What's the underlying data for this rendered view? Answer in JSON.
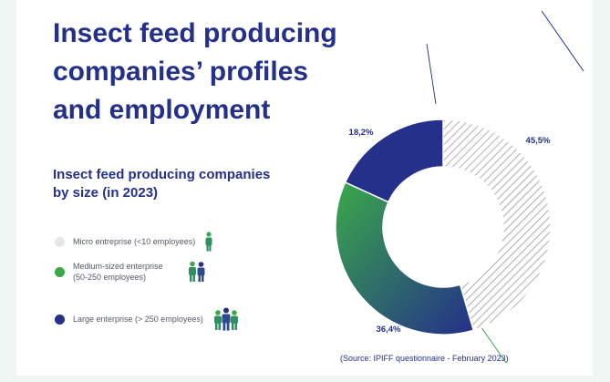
{
  "title_lines": [
    "Insect feed producing",
    "companies’ profiles",
    "and employment"
  ],
  "subtitle_lines": [
    "Insect feed producing companies",
    "by size (in 2023)"
  ],
  "legend": [
    {
      "label_lines": [
        "Micro entreprise (<10 employees)"
      ],
      "color": "#e6e6e6",
      "people_icons": 1
    },
    {
      "label_lines": [
        "Medium-sized enterprise",
        "(50-250 employees)"
      ],
      "color": "#3aa84a",
      "people_icons": 2
    },
    {
      "label_lines": [
        "Large enterprise (> 250 employees)"
      ],
      "color": "#24308a",
      "people_icons": 3
    }
  ],
  "chart_data": {
    "type": "pie",
    "variant": "donut",
    "categories": [
      "Micro entreprise (<10 employees)",
      "Medium-sized enterprise (50-250 employees)",
      "Large enterprise (> 250 employees)"
    ],
    "values": [
      45.5,
      36.4,
      18.2
    ],
    "labels": [
      "45,5%",
      "36,4%",
      "18,2%"
    ],
    "colors": [
      "#e6e6e6",
      "#3aa84a",
      "#24308a"
    ],
    "micro_pattern": "diagonal-hatch",
    "gradient": [
      "#3aa84a",
      "#24308a"
    ]
  },
  "source": "(Source: IPIFF questionnaire - February 2023)"
}
